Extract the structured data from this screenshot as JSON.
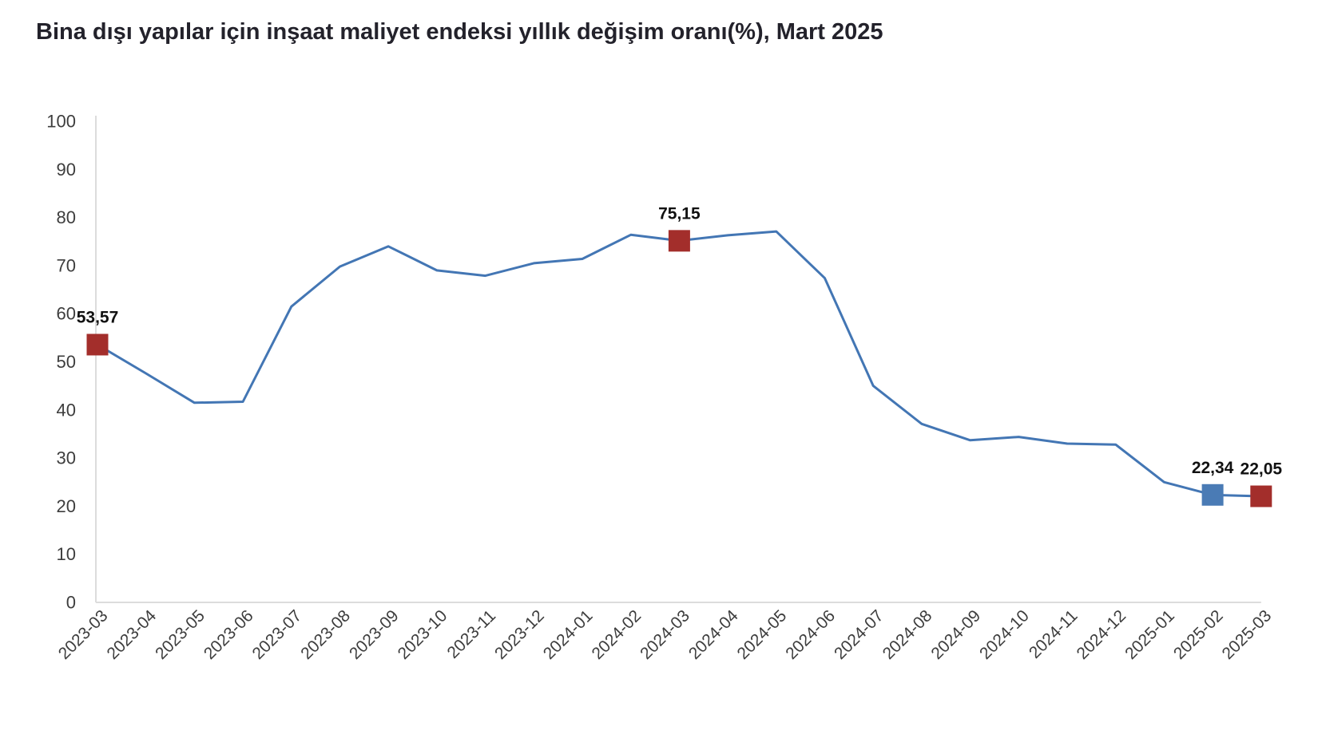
{
  "title": "Bina dışı yapılar için inşaat maliyet endeksi yıllık değişim oranı(%), Mart 2025",
  "colors": {
    "line": "#4376b4",
    "marker_red": "#a32e2b",
    "marker_blue": "#4a7bb5",
    "axis_line": "#dcdcdc",
    "tick_text": "#3d3d3d",
    "title_text": "#23222b",
    "label_text": "#111111",
    "background": "#ffffff"
  },
  "chart_data": {
    "type": "line",
    "title": "Bina dışı yapılar için inşaat maliyet endeksi yıllık değişim oranı(%), Mart 2025",
    "xlabel": "",
    "ylabel": "",
    "ylim": [
      0,
      100
    ],
    "yticks": [
      0,
      10,
      20,
      30,
      40,
      50,
      60,
      70,
      80,
      90,
      100
    ],
    "grid": false,
    "legend": false,
    "x": [
      "2023-03",
      "2023-04",
      "2023-05",
      "2023-06",
      "2023-07",
      "2023-08",
      "2023-09",
      "2023-10",
      "2023-11",
      "2023-12",
      "2024-01",
      "2024-02",
      "2024-03",
      "2024-04",
      "2024-05",
      "2024-06",
      "2024-07",
      "2024-08",
      "2024-09",
      "2024-10",
      "2024-11",
      "2024-12",
      "2025-01",
      "2025-02",
      "2025-03"
    ],
    "values": [
      53.57,
      47.6,
      41.5,
      41.7,
      61.5,
      69.8,
      74.0,
      69.0,
      67.9,
      70.5,
      71.4,
      76.4,
      75.15,
      76.3,
      77.1,
      67.4,
      45.0,
      37.1,
      33.7,
      34.4,
      33.0,
      32.8,
      25.0,
      22.34,
      22.05
    ],
    "highlighted_points": [
      {
        "x": "2023-03",
        "value": 53.57,
        "label": "53,57",
        "color": "#a32e2b"
      },
      {
        "x": "2024-03",
        "value": 75.15,
        "label": "75,15",
        "color": "#a32e2b"
      },
      {
        "x": "2025-02",
        "value": 22.34,
        "label": "22,34",
        "color": "#4a7bb5"
      },
      {
        "x": "2025-03",
        "value": 22.05,
        "label": "22,05",
        "color": "#a32e2b"
      }
    ]
  }
}
